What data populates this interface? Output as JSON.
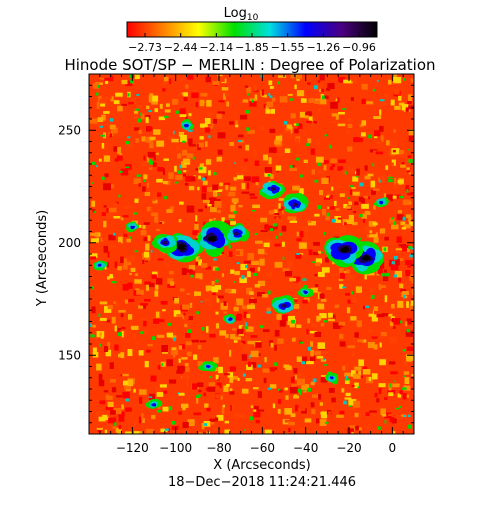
{
  "colorbar": {
    "label_base": "Log",
    "label_sub": "10",
    "ticks": [
      "−2.73",
      "−2.44",
      "−2.14",
      "−1.85",
      "−1.55",
      "−1.26",
      "−0.96"
    ],
    "colors": [
      "#ff0000",
      "#ff7f00",
      "#ffff00",
      "#00e000",
      "#00e0e0",
      "#0000ff",
      "#4b0082",
      "#000000"
    ]
  },
  "chart_data": {
    "type": "heatmap",
    "title": "Hinode SOT/SP − MERLIN : Degree of Polarization",
    "xlabel": "X (Arcseconds)",
    "ylabel": "Y (Arcseconds)",
    "xlim": [
      -140,
      10
    ],
    "ylim": [
      115,
      275
    ],
    "xticks": [
      -120,
      -100,
      -80,
      -60,
      -40,
      -20,
      0
    ],
    "yticks": [
      150,
      200,
      250
    ],
    "colorbar_range": [
      -2.73,
      -0.96
    ],
    "timestamp": "18−Dec−2018 11:24:21.446",
    "features": [
      {
        "x": -97,
        "y": 198,
        "level": "high"
      },
      {
        "x": -83,
        "y": 202,
        "level": "high"
      },
      {
        "x": -72,
        "y": 204,
        "level": "medium"
      },
      {
        "x": -105,
        "y": 200,
        "level": "medium"
      },
      {
        "x": -12,
        "y": 193,
        "level": "high"
      },
      {
        "x": -22,
        "y": 197,
        "level": "high"
      },
      {
        "x": -45,
        "y": 217,
        "level": "medium"
      },
      {
        "x": -55,
        "y": 224,
        "level": "medium"
      },
      {
        "x": -50,
        "y": 172,
        "level": "medium"
      },
      {
        "x": -40,
        "y": 178,
        "level": "low"
      },
      {
        "x": -5,
        "y": 218,
        "level": "low"
      },
      {
        "x": -135,
        "y": 190,
        "level": "low"
      },
      {
        "x": -120,
        "y": 207,
        "level": "low"
      },
      {
        "x": -75,
        "y": 166,
        "level": "low"
      },
      {
        "x": -85,
        "y": 145,
        "level": "low"
      },
      {
        "x": -95,
        "y": 252,
        "level": "low"
      },
      {
        "x": -28,
        "y": 140,
        "level": "low"
      },
      {
        "x": -110,
        "y": 128,
        "level": "low"
      }
    ]
  }
}
